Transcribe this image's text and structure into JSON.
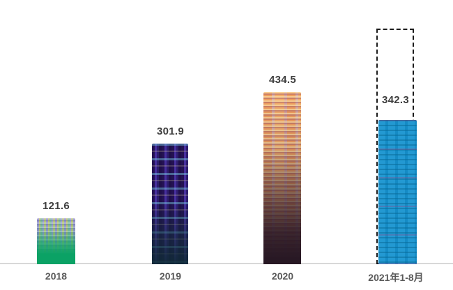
{
  "chart_data": {
    "type": "bar",
    "categories": [
      "2018",
      "2019",
      "2020",
      "2021年1-8月"
    ],
    "values": [
      121.6,
      301.9,
      434.5,
      342.3
    ],
    "title": "",
    "xlabel": "",
    "ylabel": "",
    "ylim": [
      0,
      600
    ],
    "grid": false,
    "legend": false,
    "baseline_axis": "light gray horizontal line across full width",
    "annotations": [
      {
        "type": "dashed-outline-box",
        "category": "2021年1-8月",
        "description": "black dashed rectangle extending above the blue bar to the chart top, value label 342.3 placed inside it above the bar"
      }
    ],
    "bar_styles": [
      {
        "category": "2018",
        "theme": "green-gradient-texture",
        "base_color": "#0ba265"
      },
      {
        "category": "2019",
        "theme": "purple-stripe-cyan-dash-texture",
        "base_color": "#2e2069"
      },
      {
        "category": "2020",
        "theme": "orange-dash-dark-bottom-texture",
        "base_color": "#f09d62"
      },
      {
        "category": "2021年1-8月",
        "theme": "blue-dash-texture",
        "base_color": "#1794d0"
      }
    ]
  },
  "colors": {
    "value_label": "#3d3d3d",
    "category_label": "#595959",
    "axis_line": "#d8d8d8",
    "dashed_box_border": "#1c1c1c",
    "background": "#ffffff"
  }
}
